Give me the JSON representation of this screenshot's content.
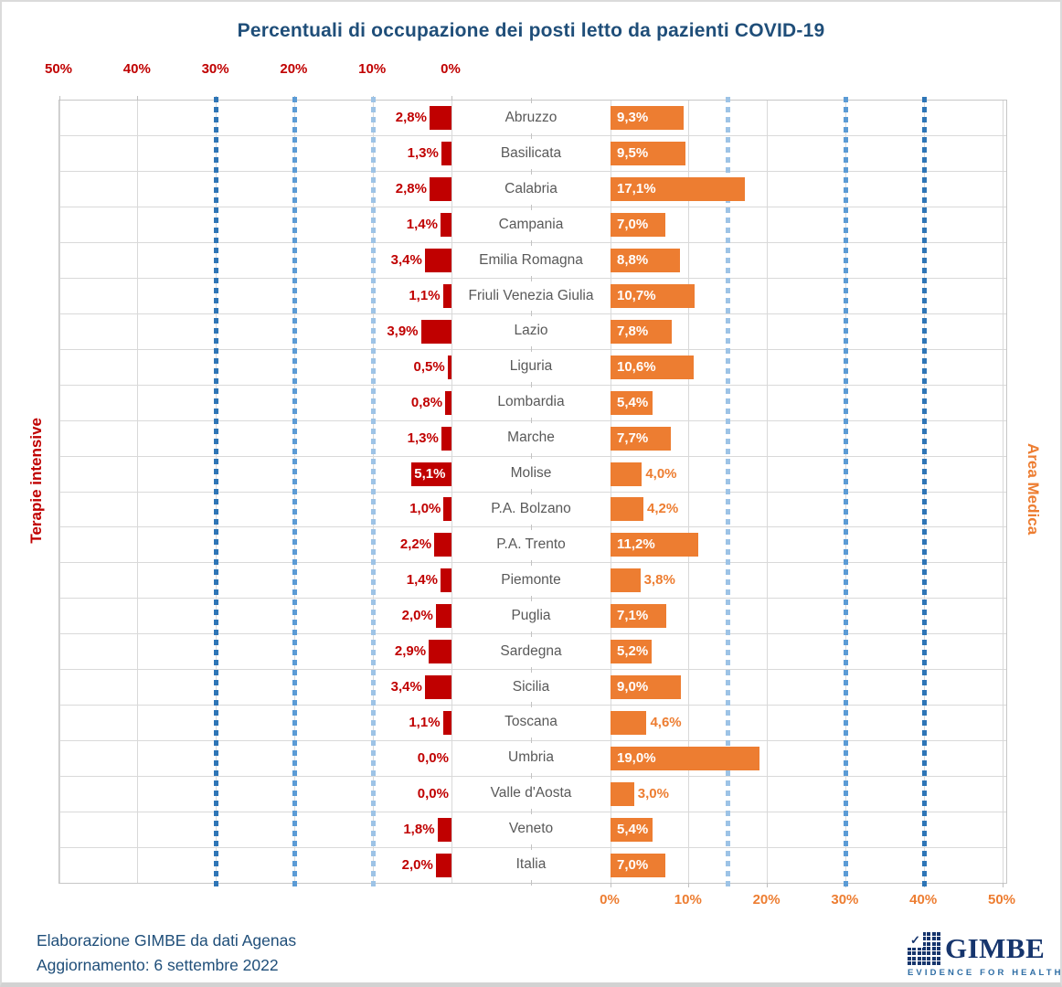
{
  "title": "Percentuali di occupazione dei posti letto da pazienti COVID-19",
  "left_axis": {
    "label": "Terapie intensive",
    "color": "#C00000",
    "ticks": [
      "50%",
      "40%",
      "30%",
      "20%",
      "10%",
      "0%"
    ]
  },
  "right_axis": {
    "label": "Area Medica",
    "color": "#ED7D31",
    "ticks": [
      "0%",
      "10%",
      "20%",
      "30%",
      "40%",
      "50%"
    ]
  },
  "chart_data": {
    "type": "bar",
    "layout": "butterfly",
    "title": "Percentuali di occupazione dei posti letto da pazienti COVID-19",
    "categories": [
      "Abruzzo",
      "Basilicata",
      "Calabria",
      "Campania",
      "Emilia Romagna",
      "Friuli Venezia Giulia",
      "Lazio",
      "Liguria",
      "Lombardia",
      "Marche",
      "Molise",
      "P.A. Bolzano",
      "P.A. Trento",
      "Piemonte",
      "Puglia",
      "Sardegna",
      "Sicilia",
      "Toscana",
      "Umbria",
      "Valle d'Aosta",
      "Veneto",
      "Italia"
    ],
    "series": [
      {
        "name": "Terapie intensive",
        "axis": "left",
        "color": "#C00000",
        "xlim": [
          0,
          50
        ],
        "values": [
          2.8,
          1.3,
          2.8,
          1.4,
          3.4,
          1.1,
          3.9,
          0.5,
          0.8,
          1.3,
          5.1,
          1.0,
          2.2,
          1.4,
          2.0,
          2.9,
          3.4,
          1.1,
          0.0,
          0.0,
          1.8,
          2.0
        ],
        "labels": [
          "2,8%",
          "1,3%",
          "2,8%",
          "1,4%",
          "3,4%",
          "1,1%",
          "3,9%",
          "0,5%",
          "0,8%",
          "1,3%",
          "5,1%",
          "1,0%",
          "2,2%",
          "1,4%",
          "2,0%",
          "2,9%",
          "3,4%",
          "1,1%",
          "0,0%",
          "0,0%",
          "1,8%",
          "2,0%"
        ]
      },
      {
        "name": "Area Medica",
        "axis": "right",
        "color": "#ED7D31",
        "xlim": [
          0,
          50
        ],
        "values": [
          9.3,
          9.5,
          17.1,
          7.0,
          8.8,
          10.7,
          7.8,
          10.6,
          5.4,
          7.7,
          4.0,
          4.2,
          11.2,
          3.8,
          7.1,
          5.2,
          9.0,
          4.6,
          19.0,
          3.0,
          5.4,
          7.0
        ],
        "labels": [
          "9,3%",
          "9,5%",
          "17,1%",
          "7,0%",
          "8,8%",
          "10,7%",
          "7,8%",
          "10,6%",
          "5,4%",
          "7,7%",
          "4,0%",
          "4,2%",
          "11,2%",
          "3,8%",
          "7,1%",
          "5,2%",
          "9,0%",
          "4,6%",
          "19,0%",
          "3,0%",
          "5,4%",
          "7,0%"
        ]
      }
    ],
    "thresholds": {
      "left": [
        {
          "value": 10,
          "color": "#9DC3E6"
        },
        {
          "value": 20,
          "color": "#5B9BD5"
        },
        {
          "value": 30,
          "color": "#2E75B6"
        }
      ],
      "right": [
        {
          "value": 15,
          "color": "#9DC3E6"
        },
        {
          "value": 30,
          "color": "#5B9BD5"
        },
        {
          "value": 40,
          "color": "#2E75B6"
        }
      ]
    },
    "grid": "on, 10% steps, light gray"
  },
  "footer": {
    "line1": "Elaborazione GIMBE da dati Agenas",
    "line2": "Aggiornamento: 6 settembre 2022"
  },
  "logo": {
    "name": "GIMBE",
    "tagline": "EVIDENCE FOR HEALTH",
    "color": "#16356D"
  },
  "icons": {
    "check": "✓"
  }
}
